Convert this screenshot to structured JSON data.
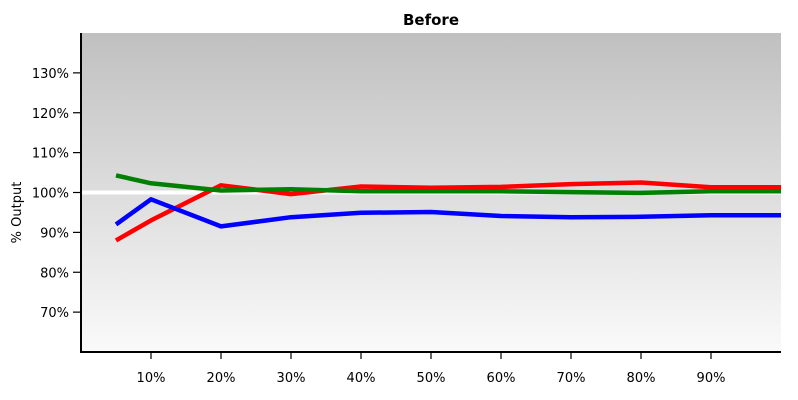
{
  "chart_data": {
    "type": "line",
    "title": "Before",
    "ylabel": "% Output",
    "xlabel": "",
    "xlim": [
      0,
      100
    ],
    "ylim": [
      60,
      140
    ],
    "x_ticks": [
      10,
      20,
      30,
      40,
      50,
      60,
      70,
      80,
      90
    ],
    "x_tick_labels": [
      "10%",
      "20%",
      "30%",
      "40%",
      "50%",
      "60%",
      "70%",
      "80%",
      "90%"
    ],
    "y_ticks": [
      70,
      80,
      90,
      100,
      110,
      120,
      130
    ],
    "y_tick_labels": [
      "70%",
      "80%",
      "90%",
      "100%",
      "110%",
      "120%",
      "130%"
    ],
    "reference_line": {
      "y": 100,
      "color": "#ffffff"
    },
    "background": {
      "top_color": "#c0c0c0",
      "bottom_color": "#fafafa"
    },
    "grid": false,
    "x": [
      5,
      10,
      20,
      30,
      40,
      50,
      60,
      70,
      80,
      90,
      100
    ],
    "series": [
      {
        "color": "#ff0000",
        "values": [
          88,
          93,
          101.8,
          99.6,
          101.5,
          101.2,
          101.4,
          102.1,
          102.5,
          101.3,
          101.3
        ]
      },
      {
        "color": "#008000",
        "values": [
          104.3,
          102.3,
          100.5,
          100.8,
          100.3,
          100.3,
          100.3,
          100.1,
          99.9,
          100.3,
          100.3
        ]
      },
      {
        "color": "#0000ff",
        "values": [
          92,
          98.3,
          91.5,
          93.8,
          94.9,
          95.1,
          94.1,
          93.8,
          93.9,
          94.3,
          94.3
        ]
      }
    ]
  }
}
